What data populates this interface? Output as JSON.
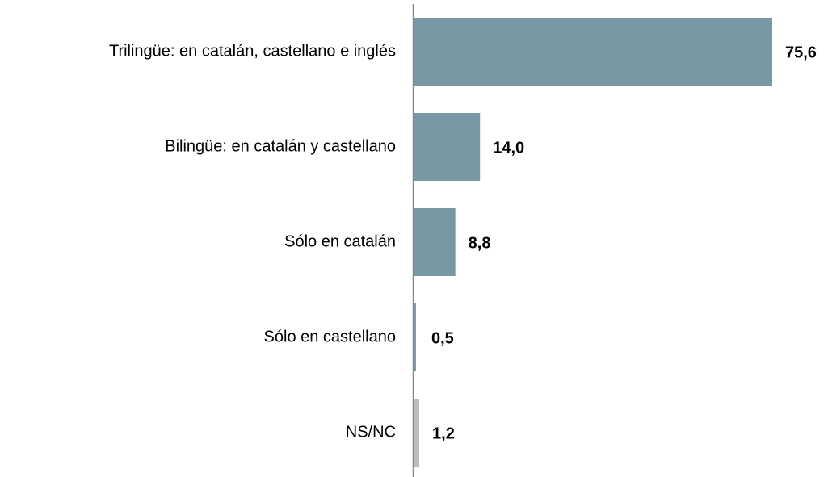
{
  "chart_data": {
    "type": "hbar",
    "categories": [
      "Trilingüe: en catalán, castellano e inglés",
      "Bilingüe: en catalán y castellano",
      "Sólo en catalán",
      "Sólo en castellano",
      "NS/NC"
    ],
    "values": [
      75.6,
      14.0,
      8.8,
      0.5,
      1.2
    ],
    "value_labels": [
      "75,6",
      "14,0",
      "8,8",
      "0,5",
      "1,2"
    ],
    "colors": [
      "#7799a3",
      "#7799a3",
      "#7799a3",
      "#7799a3",
      "#bdbdbd"
    ]
  }
}
